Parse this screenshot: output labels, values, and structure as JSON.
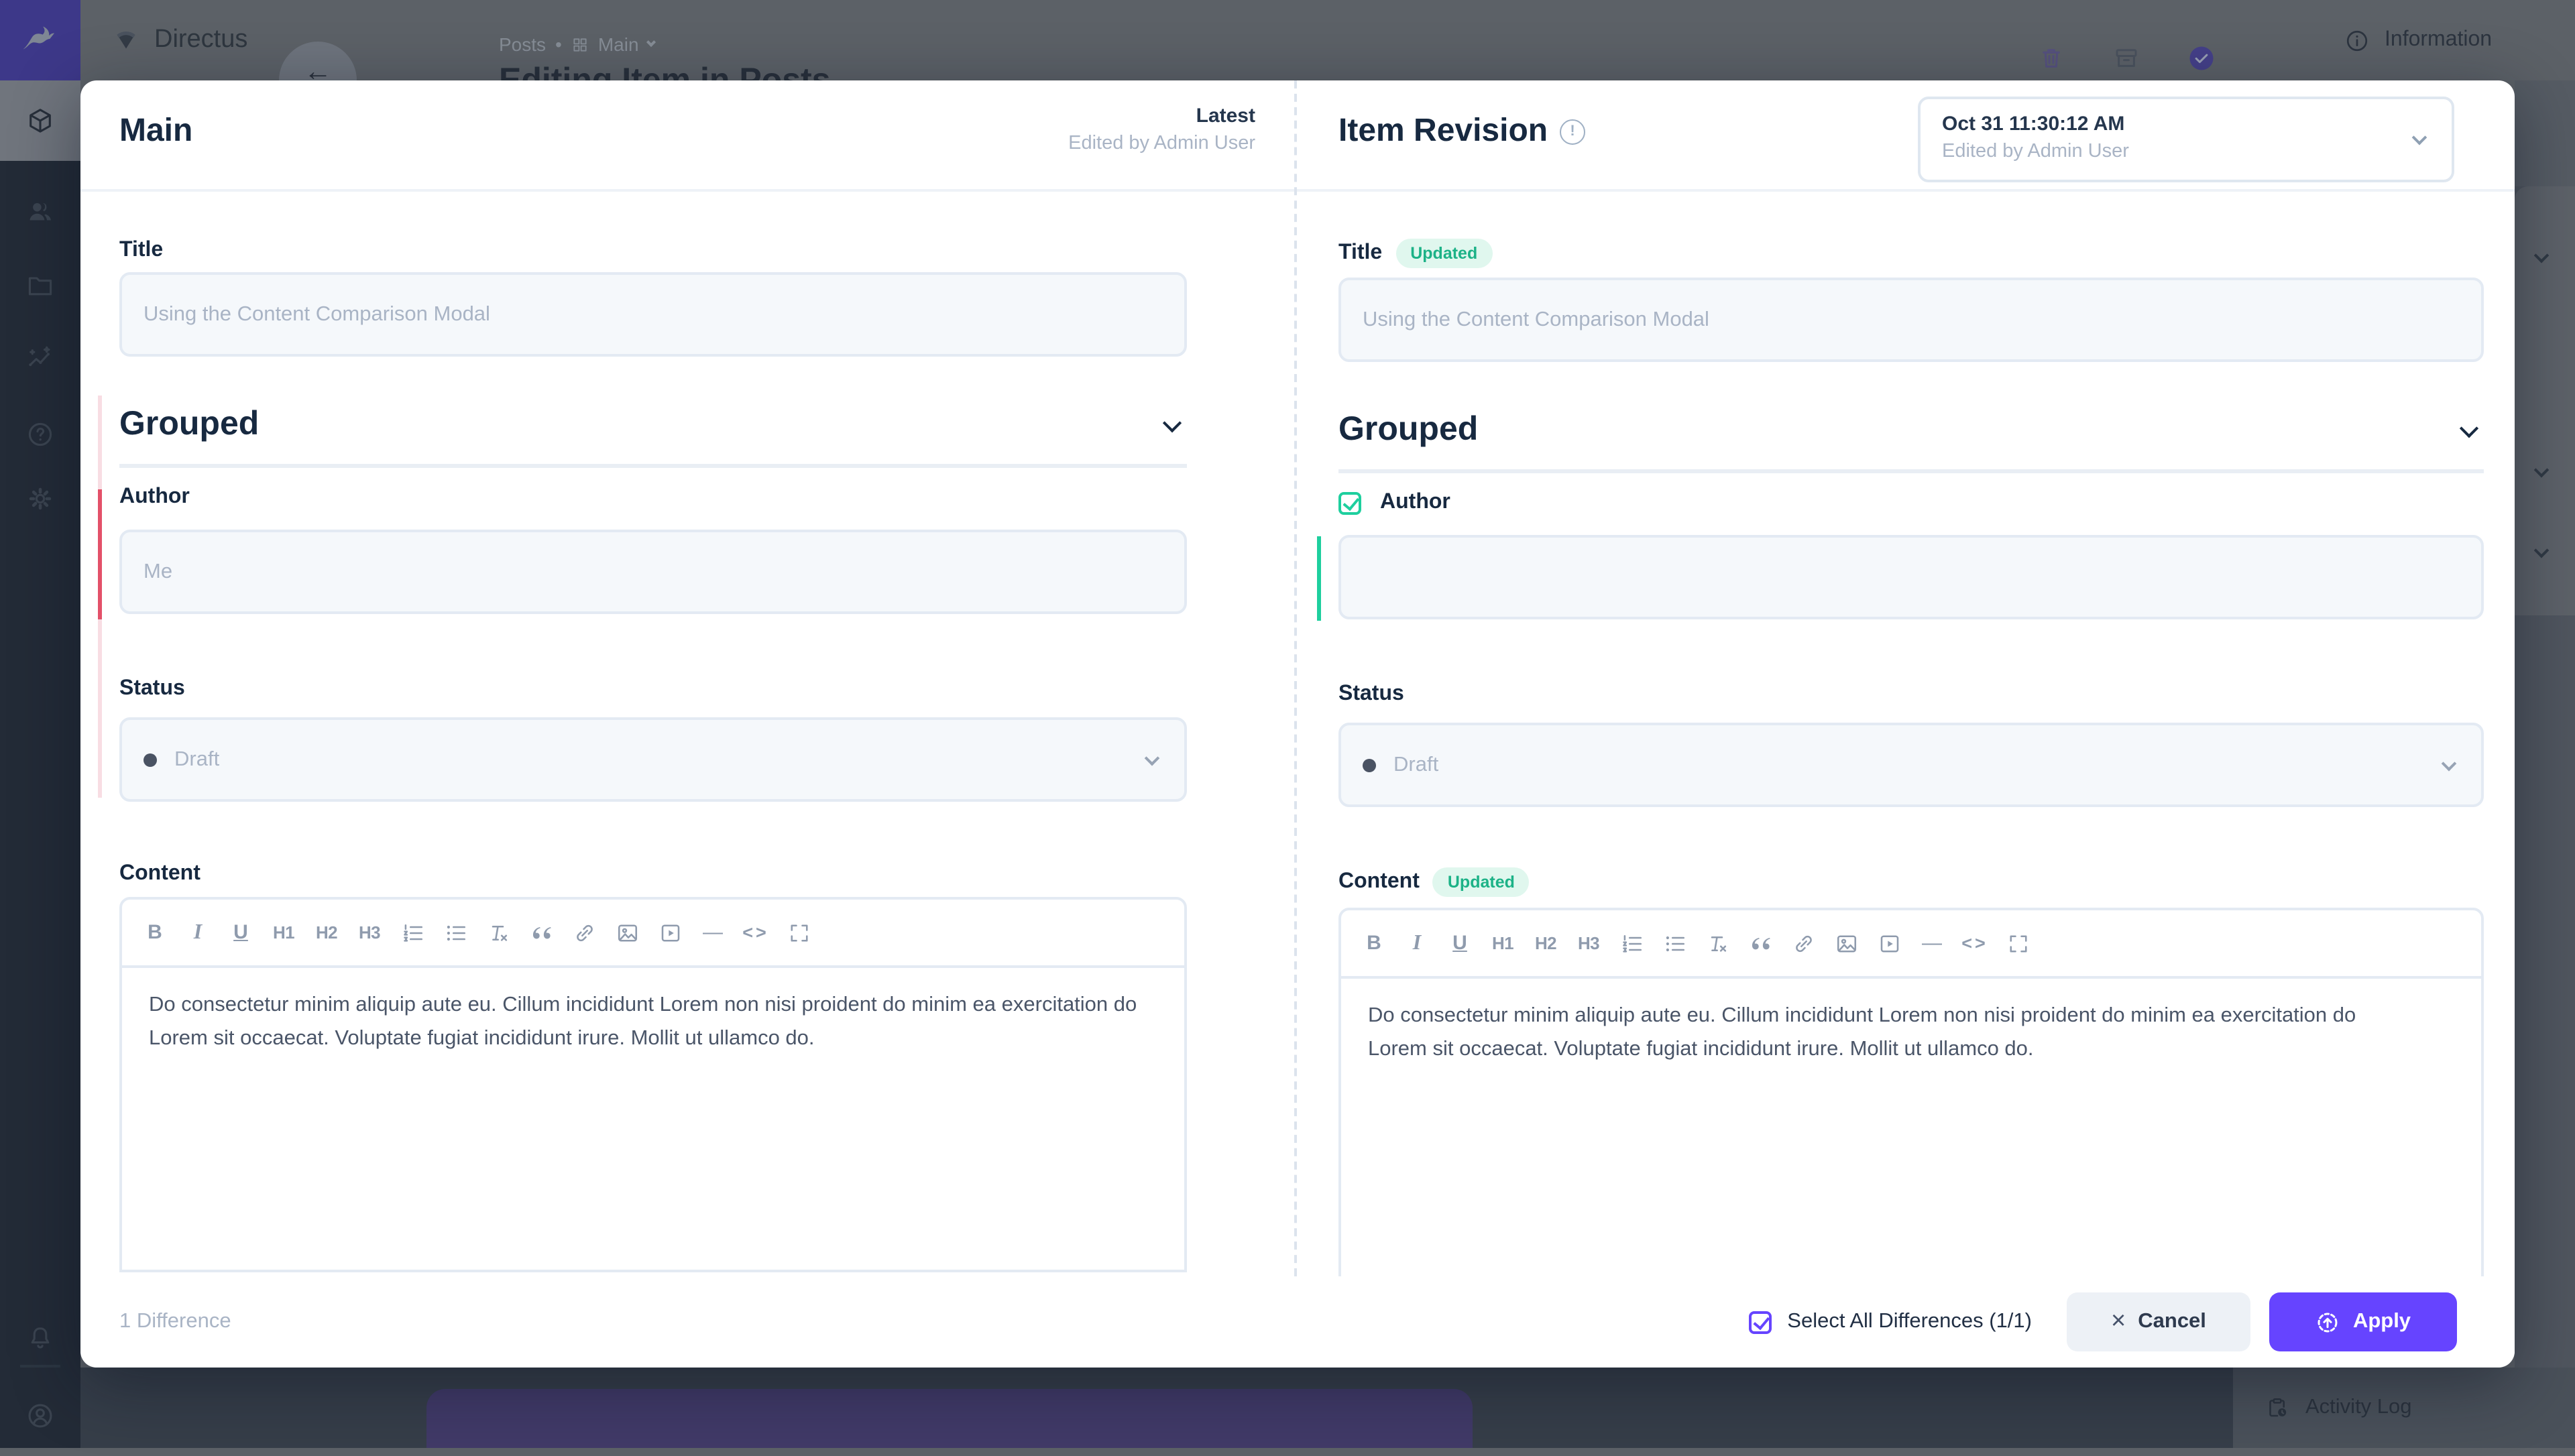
{
  "colors": {
    "accent": "#6644ff",
    "success": "#1ecf9e",
    "danger": "#e35169"
  },
  "app_header": {
    "brand": "Directus",
    "breadcrumb": {
      "collection": "Posts",
      "separator": "•",
      "group": "Main"
    },
    "page_title": "Editing Item in Posts",
    "action_icons": [
      "delete",
      "archive",
      "save"
    ],
    "info_panel_title": "Information"
  },
  "module_bar": {
    "icons": [
      "content-cube",
      "user-directory",
      "file-library",
      "insights",
      "help",
      "settings",
      "notifications",
      "account"
    ]
  },
  "backdrop": {
    "activity_log_label": "Activity Log"
  },
  "modal": {
    "left_panel": {
      "heading": "Main",
      "version_label": "Latest",
      "edited_by": "Edited by Admin User"
    },
    "right_panel": {
      "heading": "Item Revision",
      "revision_time": "Oct 31 11:30:12 AM",
      "edited_by": "Edited by Admin User"
    },
    "updated_badge": "Updated",
    "fields": {
      "title": {
        "label": "Title",
        "value": "Using the Content Comparison Modal"
      },
      "group": {
        "label": "Grouped"
      },
      "author": {
        "label": "Author",
        "left_value": "Me",
        "right_value": ""
      },
      "status": {
        "label": "Status",
        "value": "Draft"
      },
      "content": {
        "label": "Content",
        "text": "Do consectetur minim aliquip aute eu. Cillum incididunt Lorem non nisi proident do minim ea exercitation do Lorem sit occaecat. Voluptate fugiat incididunt irure. Mollit ut ullamco do."
      }
    },
    "editor_toolbar": [
      {
        "name": "bold",
        "glyph": "B"
      },
      {
        "name": "italic",
        "glyph": "I"
      },
      {
        "name": "underline",
        "glyph": "U"
      },
      {
        "name": "h1",
        "glyph": "H1"
      },
      {
        "name": "h2",
        "glyph": "H2"
      },
      {
        "name": "h3",
        "glyph": "H3"
      },
      {
        "name": "ordered-list"
      },
      {
        "name": "bullet-list"
      },
      {
        "name": "clear-format"
      },
      {
        "name": "blockquote"
      },
      {
        "name": "link"
      },
      {
        "name": "image"
      },
      {
        "name": "video"
      },
      {
        "name": "horizontal-rule",
        "glyph": "—"
      },
      {
        "name": "code",
        "glyph": "<>"
      },
      {
        "name": "fullscreen"
      }
    ],
    "footer": {
      "difference_count": "1 Difference",
      "select_all_label": "Select All Differences (1/1)",
      "cancel_label": "Cancel",
      "apply_label": "Apply"
    }
  }
}
